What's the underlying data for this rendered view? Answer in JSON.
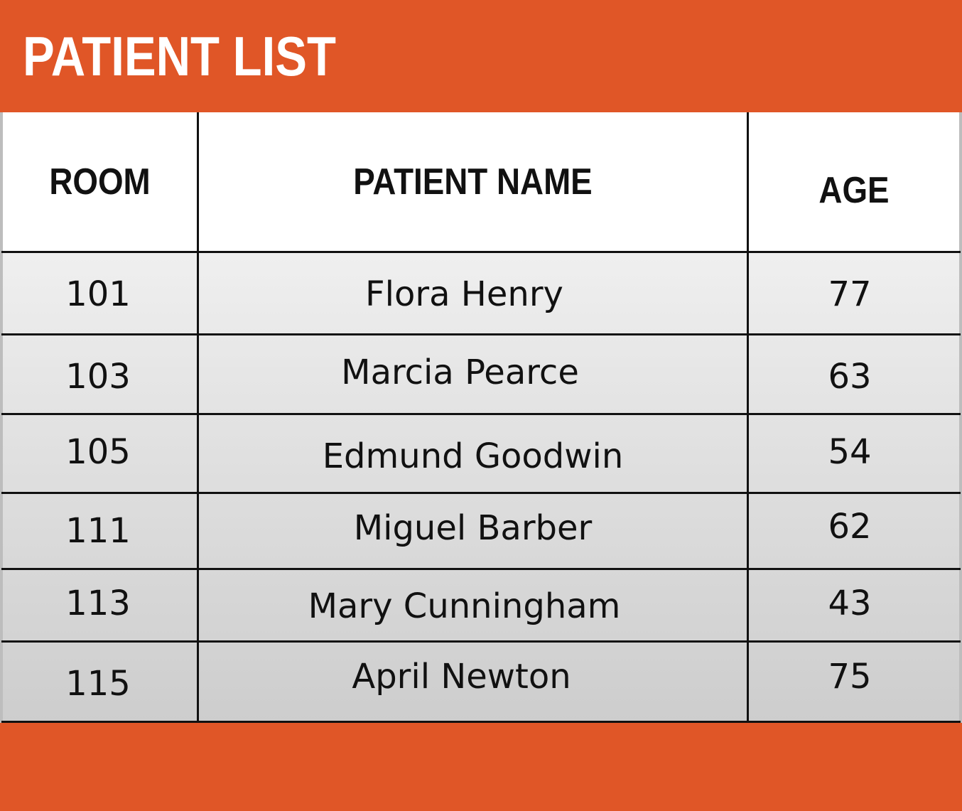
{
  "title": "PATIENT LIST",
  "columns": [
    "ROOM",
    "PATIENT NAME",
    "AGE"
  ],
  "rows": [
    {
      "room": "101",
      "name": "Flora Henry",
      "age": "77"
    },
    {
      "room": "103",
      "name": "Marcia Pearce",
      "age": "63"
    },
    {
      "room": "105",
      "name": "Edmund Goodwin",
      "age": "54"
    },
    {
      "room": "111",
      "name": "Miguel Barber",
      "age": "62"
    },
    {
      "room": "113",
      "name": "Mary Cunningham",
      "age": "43"
    },
    {
      "room": "115",
      "name": "April Newton",
      "age": "75"
    }
  ],
  "colors": {
    "accent": "#E05627",
    "title_text": "#FFFFFF",
    "grid": "#111111"
  }
}
